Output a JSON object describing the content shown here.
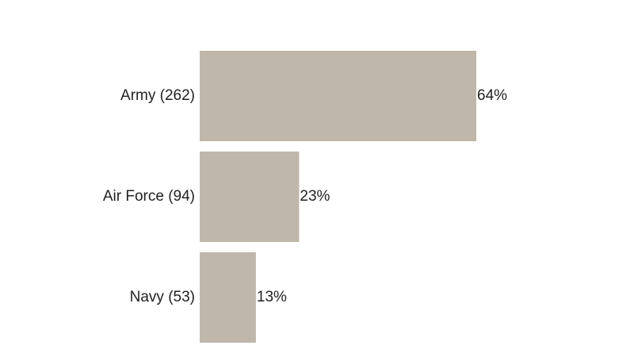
{
  "chart_data": {
    "type": "bar",
    "orientation": "horizontal",
    "categories": [
      "Army (262)",
      "Air Force (94)",
      "Navy (53)"
    ],
    "values": [
      64,
      23,
      13
    ],
    "value_labels": [
      "64%",
      "23%",
      "13%"
    ],
    "unit": "%",
    "xlim": [
      0,
      64
    ],
    "grid": false,
    "legend": "none",
    "colors": {
      "bar": "#bfb8aa",
      "text": "#222222",
      "background": "#ffffff"
    }
  }
}
